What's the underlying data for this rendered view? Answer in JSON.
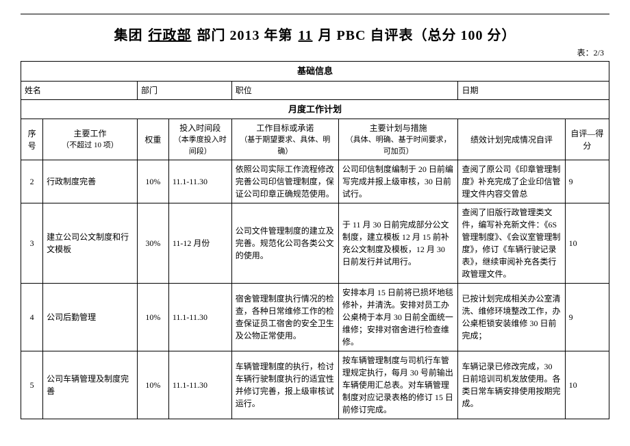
{
  "title_parts": {
    "p1": "集团",
    "u1": "行政部",
    "p2": "部门 2013 年第",
    "u2": "11",
    "p3": "月 PBC 自评表（总分 100 分）"
  },
  "meta_label": "表：2/3",
  "section_basic": "基础信息",
  "basic_headers": {
    "name": "姓名",
    "dept": "部门",
    "pos": "职位",
    "date": "日期"
  },
  "section_plan": "月度工作计划",
  "plan_headers": {
    "seq": "序号",
    "task": "主要工作",
    "task_note": "（不超过 10 项）",
    "weight": "权重",
    "time": "投入时间段",
    "time_note": "（本季度投入时间段）",
    "goal": "工作目标或承诺",
    "goal_note": "（基于期望要求、具体、明确）",
    "plan": "主要计划与措施",
    "plan_note": "（具体、明确、基于时间要求，可加页）",
    "eval": "绩效计划完成情况自评",
    "score": "自评—得分"
  },
  "rows": [
    {
      "seq": "2",
      "task": "行政制度完善",
      "weight": "10%",
      "time": "11.1-11.30",
      "goal": "依照公司实际工作流程修改完善公司印信管理制度，保证公司印章正确规范使用。",
      "plan": "公司印信制度编制于 20 日前编写完成并报上级审核，30 日前试行。",
      "eval": "查阅了原公司《印章管理制度》补充完成了企业印信管理文件内容交曾总",
      "score": "9"
    },
    {
      "seq": "3",
      "task": "建立公司公文制度和行文模板",
      "weight": "30%",
      "time": "11-12 月份",
      "goal": "公司文件管理制度的建立及完善。规范化公司各类公文的使用。",
      "plan": "于 11 月 30 日前完成部分公文制度，建立模板 12 月 15 前补充公文制度及模板，12 月 30 日前发行并试用行。",
      "eval": "查阅了旧版行政管理类文件，编写补充新文件：《6S 管理制度》、《会议室管理制度》，修订《车辆行驶记录表》，继续审阅补充各类行政管理文件。",
      "score": "10"
    },
    {
      "seq": "4",
      "task": "公司后勤管理",
      "weight": "10%",
      "time": "11.1-11.30",
      "goal": "宿舍管理制度执行情况的检查，各种日常维修工作的检查保证员工宿舍的安全卫生及公物正常使用。",
      "plan": "安排本月 15 日前将已损坏地毯修补，并清洗。安排对员工办公桌椅于本月 30 日前全面统一维修；安排对宿舍进行检查维修。",
      "eval": "已按计划完成相关办公室清洗、维修环境整改工作，办公桌柜锁安装维修 30 日前完成；",
      "score": "9"
    },
    {
      "seq": "5",
      "task": "公司车辆管理及制度完善",
      "weight": "10%",
      "time": "11.1-11.30",
      "goal": "车辆管理制度的执行，检讨车辆行驶制度执行的适宜性并修订完善，报上级审核试运行。",
      "plan": "按车辆管理制度与司机行车管理规定执行，每月 30 号前输出车辆使用汇总表。对车辆管理制度对应记录表格的修订 15 日前修订完成。",
      "eval": "车辆记录已修改完成，30 日前培训司机发放使用。各类日常车辆安排使用按期完成。",
      "score": "10"
    }
  ]
}
